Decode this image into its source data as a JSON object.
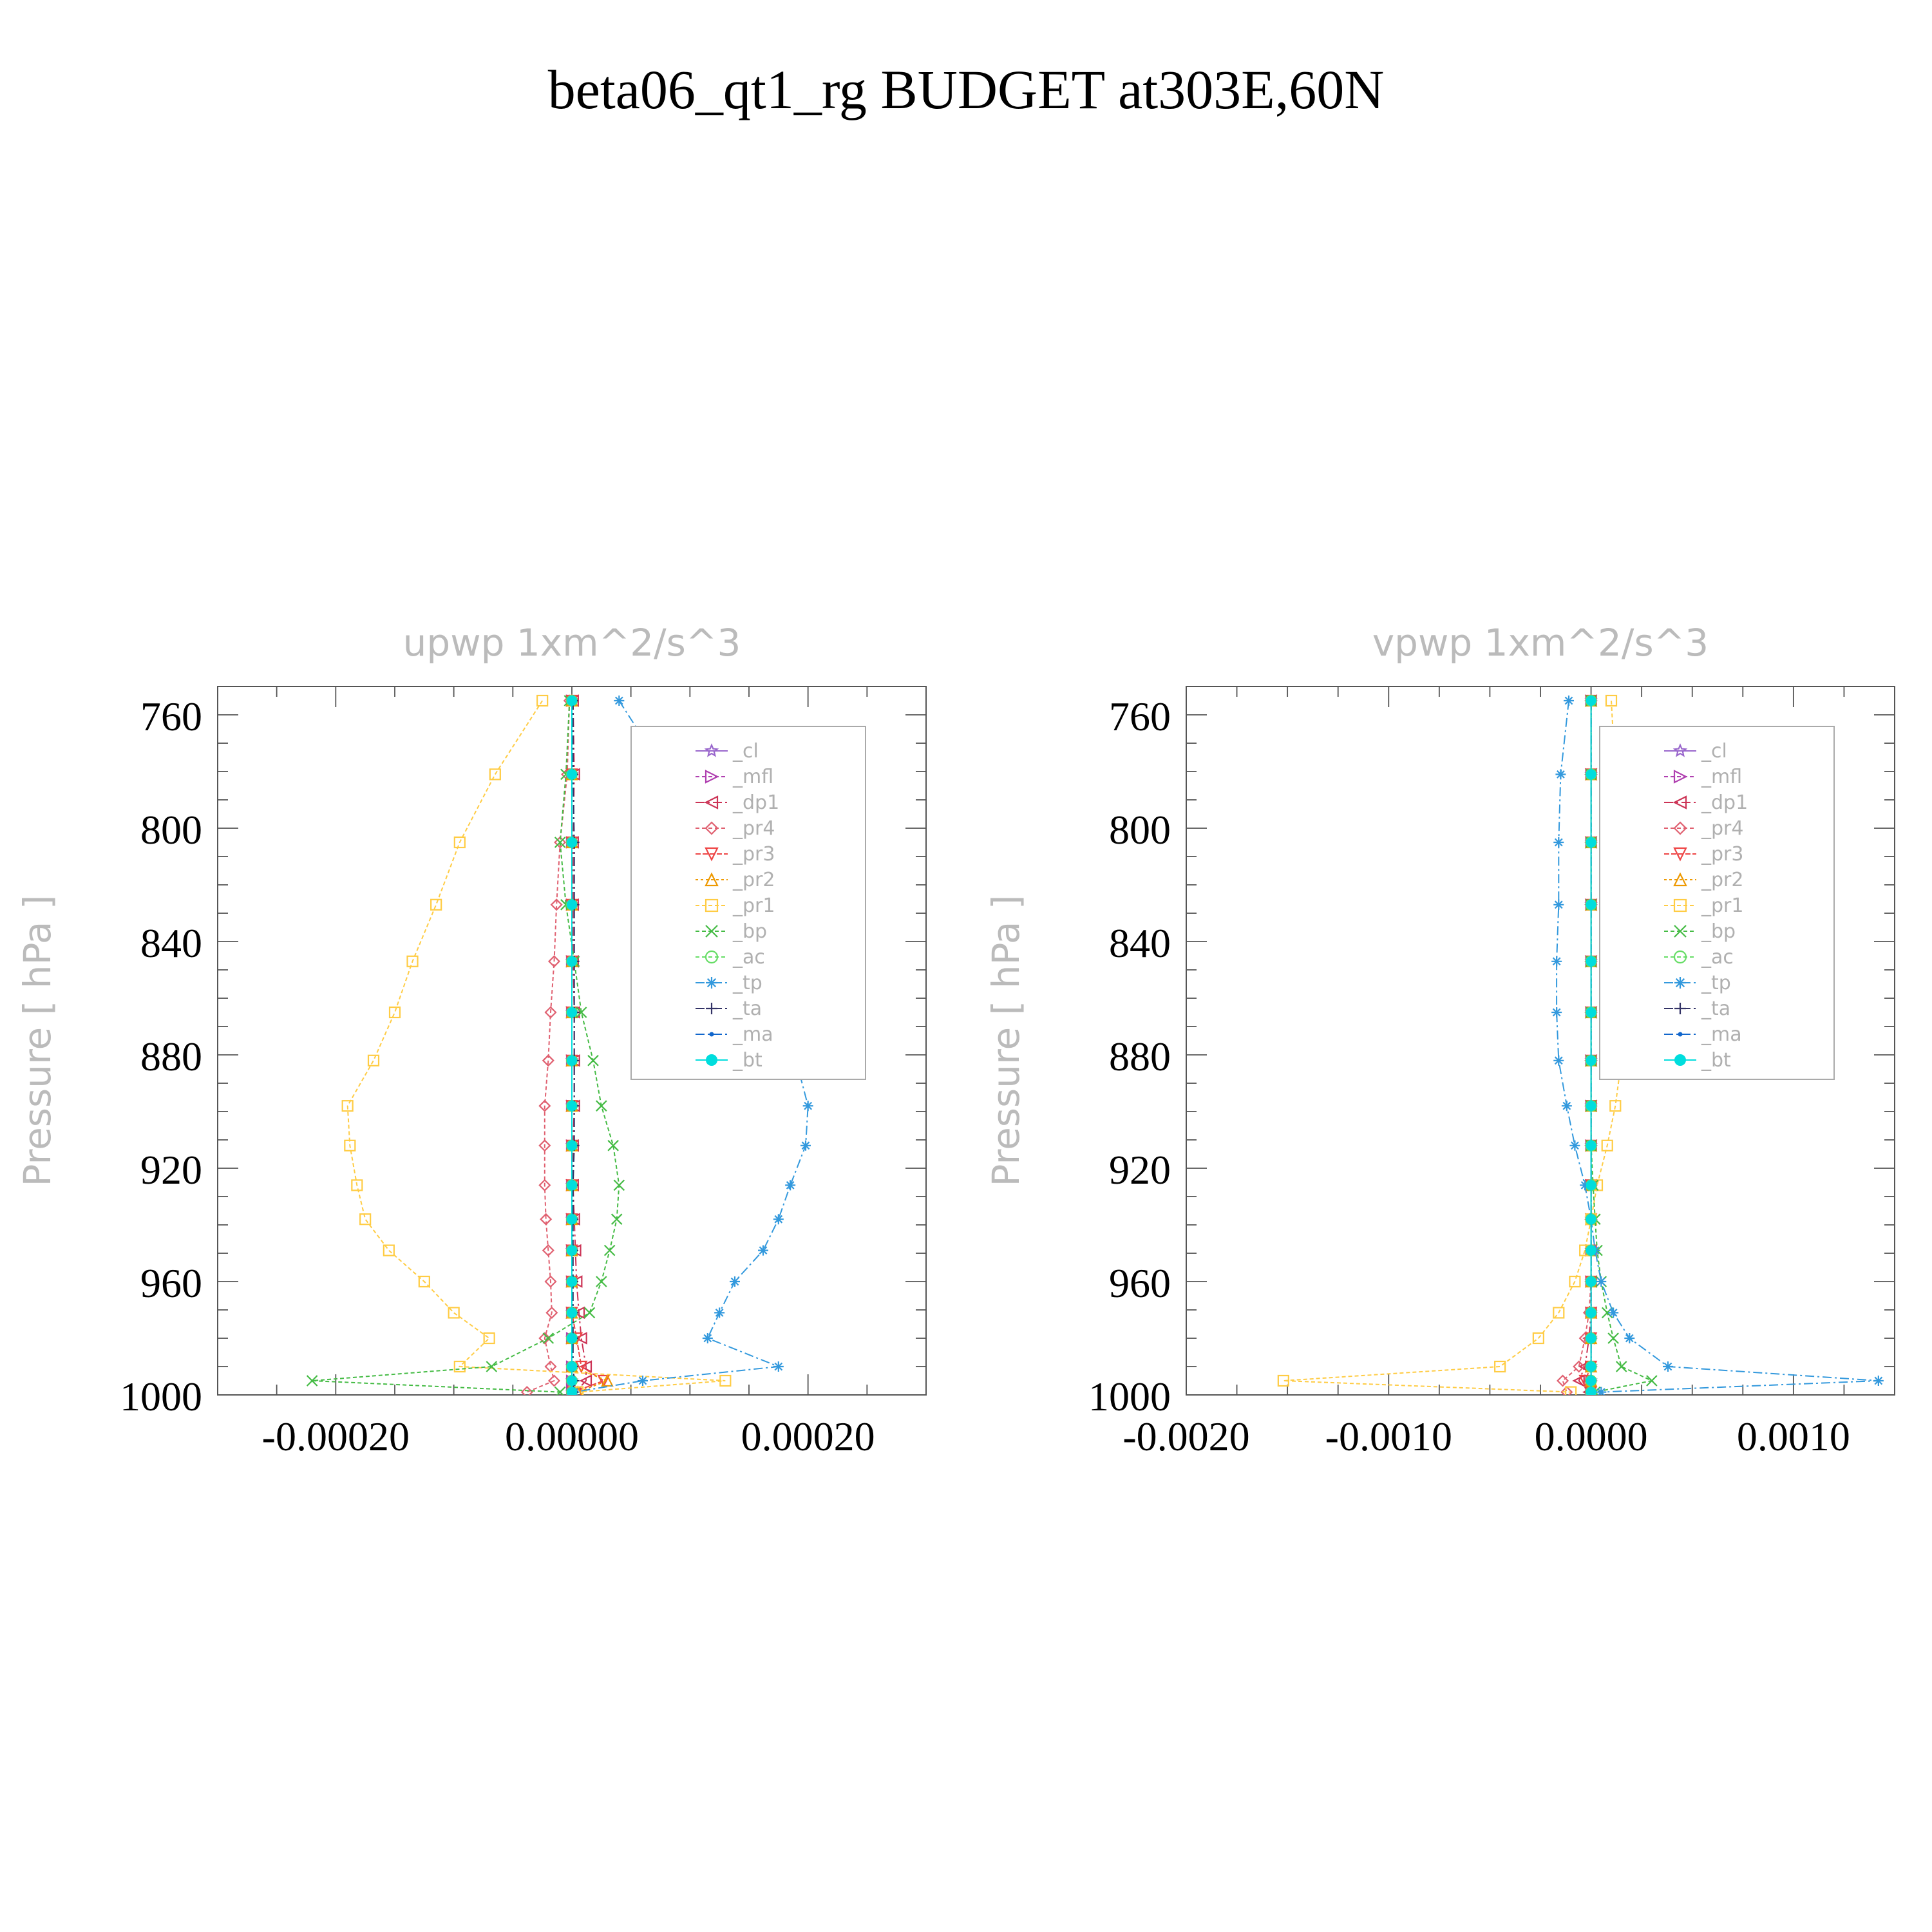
{
  "title": "beta06_qt1_rg  BUDGET at303E,60N",
  "chart_data": [
    {
      "type": "line",
      "panel_title": "upwp    1xm^2/s^3",
      "ylabel": "Pressure  [ hPa ]",
      "y_inverted": true,
      "ylim": [
        1000,
        750
      ],
      "xlim": [
        -0.0003,
        0.0003
      ],
      "xticks": [
        -0.0002,
        0.0,
        0.0002
      ],
      "xtick_labels": [
        "-0.00020",
        "0.00000",
        "0.00020"
      ],
      "yticks": [
        760,
        800,
        840,
        880,
        920,
        960,
        1000
      ],
      "ytick_labels": [
        "760",
        "800",
        "840",
        "880",
        "920",
        "960",
        "1000"
      ],
      "legend_placement": "top-right",
      "y": [
        755,
        781,
        805,
        827,
        847,
        865,
        882,
        898,
        912,
        926,
        938,
        949,
        960,
        971,
        980,
        990,
        995,
        999
      ],
      "series": [
        {
          "name": "_cl",
          "color": "#9966cc",
          "marker": "star",
          "dash": "",
          "values": [
            0,
            0,
            0,
            0,
            0,
            0,
            0,
            0,
            0,
            0,
            0,
            0,
            0,
            0,
            0,
            0,
            0,
            0
          ]
        },
        {
          "name": "_mfl",
          "color": "#b040b0",
          "marker": "tri-right",
          "dash": "6 4",
          "values": [
            0,
            0,
            0,
            0,
            0,
            0,
            0,
            0,
            0,
            0,
            0,
            0,
            0,
            0,
            0,
            0,
            0,
            0
          ]
        },
        {
          "name": "_dp1",
          "color": "#cc3355",
          "marker": "tri-left",
          "dash": "14 5 3 5",
          "values": [
            1e-06,
            2e-06,
            1e-06,
            1e-06,
            1e-06,
            2e-06,
            2e-06,
            2e-06,
            1e-06,
            1e-06,
            2e-06,
            3e-06,
            4e-06,
            6e-06,
            8e-06,
            1.2e-05,
            1.2e-05,
            3e-06
          ]
        },
        {
          "name": "_pr4",
          "color": "#e06070",
          "marker": "diamond",
          "dash": "6 4",
          "values": [
            -2e-06,
            -4e-06,
            -1e-05,
            -1.3e-05,
            -1.5e-05,
            -1.8e-05,
            -2e-05,
            -2.3e-05,
            -2.3e-05,
            -2.3e-05,
            -2.2e-05,
            -2e-05,
            -1.8e-05,
            -1.7e-05,
            -2.3e-05,
            -1.8e-05,
            -1.5e-05,
            -3.8e-05
          ]
        },
        {
          "name": "_pr3",
          "color": "#ee4444",
          "marker": "tri-down",
          "dash": "8 3",
          "values": [
            0,
            0,
            0,
            0,
            0,
            0,
            0,
            0,
            0,
            0,
            0,
            0,
            0,
            0,
            4e-06,
            8e-06,
            2.7e-05,
            1e-06
          ]
        },
        {
          "name": "_pr2",
          "color": "#ee9900",
          "marker": "tri-up",
          "dash": "4 4",
          "values": [
            0,
            0,
            0,
            0,
            0,
            0,
            0,
            0,
            0,
            0,
            0,
            0,
            0,
            0,
            0,
            0,
            3e-05,
            5e-06
          ]
        },
        {
          "name": "_pr1",
          "color": "#ffcc44",
          "marker": "square",
          "dash": "6 4",
          "values": [
            -2.5e-05,
            -6.5e-05,
            -9.5e-05,
            -0.000115,
            -0.000135,
            -0.00015,
            -0.000168,
            -0.00019,
            -0.000188,
            -0.000182,
            -0.000175,
            -0.000155,
            -0.000125,
            -0.0001,
            -7e-05,
            -9.5e-05,
            0.00013,
            5e-06
          ]
        },
        {
          "name": "_bp",
          "color": "#44bb44",
          "marker": "x",
          "dash": "6 4",
          "values": [
            -2e-06,
            -5e-06,
            -1e-05,
            -5e-06,
            2e-06,
            8e-06,
            1.8e-05,
            2.5e-05,
            3.5e-05,
            4e-05,
            3.8e-05,
            3.2e-05,
            2.5e-05,
            1.5e-05,
            -2e-05,
            -6.8e-05,
            -0.00022,
            -1e-05
          ]
        },
        {
          "name": "_ac",
          "color": "#66dd66",
          "marker": "circle",
          "dash": "6 4",
          "values": [
            0,
            0,
            0,
            0,
            0,
            0,
            0,
            0,
            0,
            0,
            0,
            0,
            0,
            0,
            0,
            0,
            0,
            0
          ]
        },
        {
          "name": "_tp",
          "color": "#3399dd",
          "marker": "asterisk",
          "dash": "14 5 3 5",
          "values": [
            4e-05,
            8e-05,
            0.000115,
            0.00014,
            0.00016,
            0.000175,
            0.00019,
            0.0002,
            0.000198,
            0.000185,
            0.000175,
            0.000162,
            0.000138,
            0.000125,
            0.000115,
            0.000175,
            6e-05,
            2e-06
          ]
        },
        {
          "name": "_ta",
          "color": "#333366",
          "marker": "plus",
          "dash": "14 5 3 5",
          "values": [
            1e-06,
            1e-06,
            2e-06,
            2e-06,
            2e-06,
            2e-06,
            2e-06,
            2e-06,
            2e-06,
            1e-06,
            1e-06,
            1e-06,
            1e-06,
            1e-06,
            1e-06,
            1e-06,
            2e-06,
            1e-06
          ]
        },
        {
          "name": "_ma",
          "color": "#1166cc",
          "marker": "dot",
          "dash": "14 5 3 5",
          "values": [
            0,
            0,
            0,
            0,
            0,
            0,
            0,
            0,
            0,
            0,
            0,
            0,
            0,
            0,
            0,
            0,
            0,
            0
          ]
        },
        {
          "name": "_bt",
          "color": "#00dddd",
          "marker": "filled-circle",
          "dash": "",
          "values": [
            0,
            0,
            0,
            0,
            0,
            0,
            0,
            0,
            0,
            0,
            0,
            0,
            0,
            0,
            0,
            0,
            0,
            0
          ]
        }
      ]
    },
    {
      "type": "line",
      "panel_title": "vpwp    1xm^2/s^3",
      "ylabel": "Pressure  [ hPa ]",
      "y_inverted": true,
      "ylim": [
        1000,
        750
      ],
      "xlim": [
        -0.002,
        0.0015
      ],
      "xticks": [
        -0.002,
        -0.001,
        0.0,
        0.001
      ],
      "xtick_labels": [
        "-0.0020",
        "-0.0010",
        "0.0000",
        "0.0010"
      ],
      "yticks": [
        760,
        800,
        840,
        880,
        920,
        960,
        1000
      ],
      "ytick_labels": [
        "760",
        "800",
        "840",
        "880",
        "920",
        "960",
        "1000"
      ],
      "legend_placement": "top-right",
      "y": [
        755,
        781,
        805,
        827,
        847,
        865,
        882,
        898,
        912,
        926,
        938,
        949,
        960,
        971,
        980,
        990,
        995,
        999
      ],
      "series": [
        {
          "name": "_cl",
          "color": "#9966cc",
          "marker": "star",
          "dash": "",
          "values": [
            0,
            0,
            0,
            0,
            0,
            0,
            0,
            0,
            0,
            0,
            0,
            0,
            0,
            0,
            0,
            0,
            0,
            0
          ]
        },
        {
          "name": "_mfl",
          "color": "#b040b0",
          "marker": "tri-right",
          "dash": "6 4",
          "values": [
            0,
            0,
            0,
            0,
            0,
            0,
            0,
            0,
            0,
            0,
            0,
            0,
            0,
            0,
            0,
            0,
            0,
            0
          ]
        },
        {
          "name": "_dp1",
          "color": "#cc3355",
          "marker": "tri-left",
          "dash": "14 5 3 5",
          "values": [
            0,
            0,
            0,
            0,
            0,
            0,
            0,
            0,
            0,
            0,
            0,
            0,
            0,
            0,
            -1e-05,
            -3e-05,
            -6e-05,
            -1e-05
          ]
        },
        {
          "name": "_pr4",
          "color": "#e06070",
          "marker": "diamond",
          "dash": "6 4",
          "values": [
            0,
            0,
            0,
            0,
            0,
            0,
            0,
            0,
            0,
            0,
            0,
            0,
            0,
            -1e-05,
            -3e-05,
            -6e-05,
            -0.00014,
            -0.00012
          ]
        },
        {
          "name": "_pr3",
          "color": "#ee4444",
          "marker": "tri-down",
          "dash": "8 3",
          "values": [
            0,
            0,
            0,
            0,
            0,
            0,
            0,
            0,
            0,
            0,
            0,
            0,
            0,
            0,
            0,
            0,
            -3e-05,
            0
          ]
        },
        {
          "name": "_pr2",
          "color": "#ee9900",
          "marker": "tri-up",
          "dash": "4 4",
          "values": [
            0,
            0,
            0,
            0,
            0,
            0,
            0,
            0,
            0,
            0,
            0,
            0,
            0,
            0,
            0,
            0,
            0,
            0
          ]
        },
        {
          "name": "_pr1",
          "color": "#ffcc44",
          "marker": "square",
          "dash": "6 4",
          "values": [
            0.0001,
            0.00012,
            0.00014,
            0.00015,
            0.00016,
            0.00016,
            0.00015,
            0.00012,
            8e-05,
            3e-05,
            0.0,
            -3e-05,
            -8e-05,
            -0.00016,
            -0.00026,
            -0.00045,
            -0.00152,
            -0.0001
          ]
        },
        {
          "name": "_bp",
          "color": "#44bb44",
          "marker": "x",
          "dash": "6 4",
          "values": [
            0,
            0,
            0,
            0,
            0,
            0,
            0,
            0,
            0,
            1e-05,
            2e-05,
            3e-05,
            5e-05,
            8e-05,
            0.00011,
            0.00015,
            0.0003,
            2e-05
          ]
        },
        {
          "name": "_ac",
          "color": "#66dd66",
          "marker": "circle",
          "dash": "6 4",
          "values": [
            0,
            0,
            0,
            0,
            0,
            0,
            0,
            0,
            0,
            0,
            0,
            0,
            0,
            0,
            0,
            0,
            0,
            0
          ]
        },
        {
          "name": "_tp",
          "color": "#3399dd",
          "marker": "asterisk",
          "dash": "14 5 3 5",
          "values": [
            -0.00011,
            -0.00015,
            -0.00016,
            -0.00016,
            -0.00017,
            -0.00017,
            -0.00016,
            -0.00012,
            -8e-05,
            -3e-05,
            0.0,
            2e-05,
            5e-05,
            0.00011,
            0.00019,
            0.00038,
            0.00142,
            5e-05
          ]
        },
        {
          "name": "_ta",
          "color": "#333366",
          "marker": "plus",
          "dash": "14 5 3 5",
          "values": [
            0,
            0,
            0,
            0,
            0,
            0,
            0,
            0,
            0,
            0,
            0,
            0,
            0,
            0,
            0,
            0,
            0,
            0
          ]
        },
        {
          "name": "_ma",
          "color": "#1166cc",
          "marker": "dot",
          "dash": "14 5 3 5",
          "values": [
            0,
            0,
            0,
            0,
            0,
            0,
            0,
            0,
            0,
            0,
            0,
            0,
            0,
            0,
            0,
            0,
            0,
            0
          ]
        },
        {
          "name": "_bt",
          "color": "#00dddd",
          "marker": "filled-circle",
          "dash": "",
          "values": [
            0,
            0,
            0,
            0,
            0,
            0,
            0,
            0,
            0,
            0,
            0,
            0,
            0,
            0,
            0,
            0,
            0,
            0
          ]
        }
      ]
    }
  ]
}
